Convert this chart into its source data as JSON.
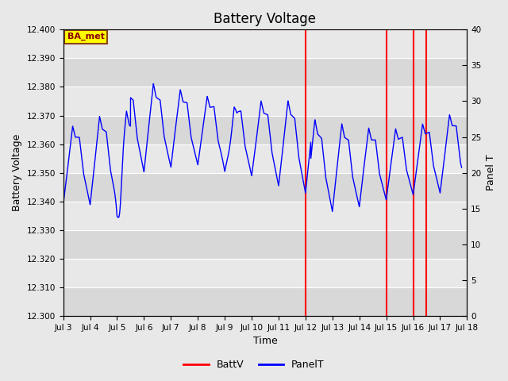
{
  "title": "Battery Voltage",
  "xlabel": "Time",
  "ylabel_left": "Battery Voltage",
  "ylabel_right": "Panel T",
  "ylim_left": [
    12.3,
    12.4
  ],
  "ylim_right": [
    0,
    40
  ],
  "yticks_left": [
    12.3,
    12.31,
    12.32,
    12.33,
    12.34,
    12.35,
    12.36,
    12.37,
    12.38,
    12.39,
    12.4
  ],
  "yticks_right": [
    0,
    5,
    10,
    15,
    20,
    25,
    30,
    35,
    40
  ],
  "xlim": [
    3,
    18
  ],
  "xticks": [
    3,
    4,
    5,
    6,
    7,
    8,
    9,
    10,
    11,
    12,
    13,
    14,
    15,
    16,
    17,
    18
  ],
  "xticklabels": [
    "Jul 3",
    "Jul 4",
    "Jul 5",
    "Jul 6",
    "Jul 7",
    "Jul 8",
    "Jul 9",
    "Jul 10",
    "Jul 11",
    "Jul 12",
    "Jul 13",
    "Jul 14",
    "Jul 15",
    "Jul 16",
    "Jul 17",
    "Jul 18"
  ],
  "bg_color": "#e8e8e8",
  "plot_bg_color": "#e8e8e8",
  "grid_color": "#ffffff",
  "batt_color": "red",
  "panel_color": "blue",
  "batt_v_flat": 12.4,
  "batt_v_vertical_lines": [
    12.0,
    15.0,
    16.0,
    16.5
  ],
  "label_box_text": "BA_met",
  "label_box_facecolor": "#ffff00",
  "label_box_edgecolor": "#8B4513",
  "label_box_textcolor": "#8B0000",
  "legend_labels": [
    "BattV",
    "PanelT"
  ],
  "title_fontsize": 12,
  "band_colors": [
    "#d8d8d8",
    "#e8e8e8"
  ]
}
